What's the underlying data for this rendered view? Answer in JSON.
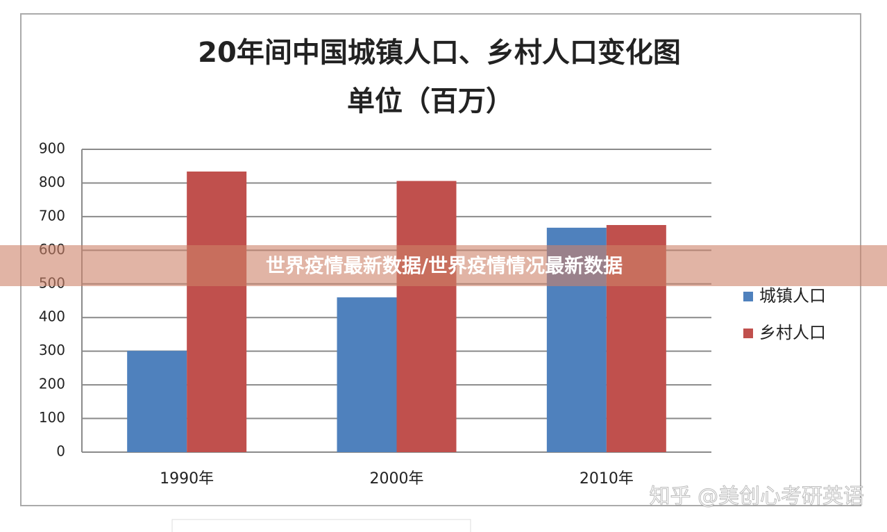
{
  "chart_data": {
    "type": "bar",
    "title": "20年间中国城镇人口、乡村人口变化图",
    "subtitle": "单位（百万）",
    "categories": [
      "1990年",
      "2000年",
      "2010年"
    ],
    "series": [
      {
        "name": "城镇人口",
        "color": "#4f81bd",
        "values": [
          301,
          460,
          667
        ]
      },
      {
        "name": "乡村人口",
        "color": "#c0504d",
        "values": [
          834,
          806,
          675
        ]
      }
    ],
    "ylim": [
      0,
      900
    ],
    "yticks": [
      0,
      100,
      200,
      300,
      400,
      500,
      600,
      700,
      800,
      900
    ],
    "grid": true,
    "legend": "right"
  },
  "overlay": {
    "banner": "世界疫情最新数据/世界疫情情况最新数据",
    "watermark": "知乎 @美创心考研英语"
  }
}
